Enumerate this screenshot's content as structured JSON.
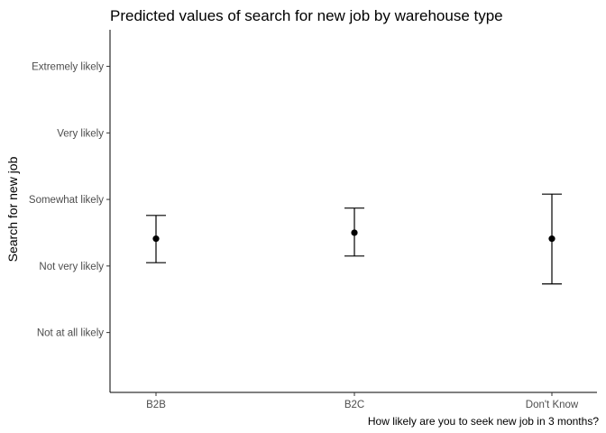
{
  "chart_data": {
    "type": "scatter",
    "title": "Predicted values of search for new job by warehouse type",
    "xlabel": "How likely are you to seek new job in 3 months?",
    "ylabel": "Search for new job",
    "categories": [
      "B2B",
      "B2C",
      "Don't Know"
    ],
    "y_tick_labels": [
      "Not at all likely",
      "Not very likely",
      "Somewhat likely",
      "Very likely",
      "Extremely likely"
    ],
    "y_tick_values": [
      1,
      2,
      3,
      4,
      5
    ],
    "ylim": [
      0.1,
      5.55
    ],
    "series": [
      {
        "values": [
          2.41,
          2.5,
          2.41
        ],
        "ci_low": [
          2.05,
          2.15,
          1.73
        ],
        "ci_high": [
          2.76,
          2.87,
          3.08
        ]
      }
    ],
    "grid": false,
    "legend": "none"
  }
}
